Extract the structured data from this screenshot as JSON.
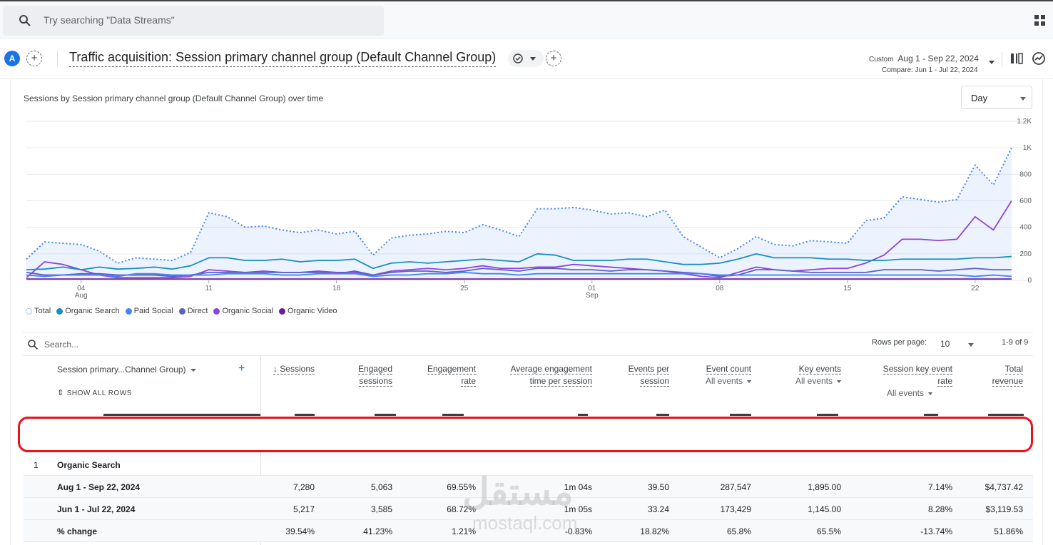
{
  "search": {
    "placeholder": "Try searching \"Data Streams\""
  },
  "header": {
    "avatar_letter": "A",
    "title": "Traffic acquisition: Session primary channel group (Default Channel Group)",
    "date_label": "Custom",
    "date_range": "Aug 1 - Sep 22, 2024",
    "compare_range": "Compare: Jun 1 - Jul 22, 2024"
  },
  "chart_card": {
    "title": "Sessions by Session primary channel group (Default Channel Group) over time",
    "granularity": "Day"
  },
  "chart_data": {
    "type": "line",
    "title": "Sessions by Session primary channel group (Default Channel Group) over time",
    "x_ticks": [
      {
        "label": "04",
        "sub": "Aug",
        "day": 3
      },
      {
        "label": "11",
        "sub": "",
        "day": 10
      },
      {
        "label": "18",
        "sub": "",
        "day": 17
      },
      {
        "label": "25",
        "sub": "",
        "day": 24
      },
      {
        "label": "01",
        "sub": "Sep",
        "day": 31
      },
      {
        "label": "08",
        "sub": "",
        "day": 38
      },
      {
        "label": "15",
        "sub": "",
        "day": 45
      },
      {
        "label": "22",
        "sub": "",
        "day": 52
      }
    ],
    "ylim": [
      0,
      1200
    ],
    "y_ticks": [
      {
        "label": "0",
        "value": 0
      },
      {
        "label": "200",
        "value": 200
      },
      {
        "label": "400",
        "value": 400
      },
      {
        "label": "600",
        "value": 600
      },
      {
        "label": "800",
        "value": 800
      },
      {
        "label": "1K",
        "value": 1000
      },
      {
        "label": "1.2K",
        "value": 1200
      }
    ],
    "series": [
      {
        "name": "Total",
        "color": "#4285f4",
        "dotted": true,
        "values": [
          160,
          290,
          280,
          270,
          220,
          130,
          170,
          160,
          150,
          210,
          510,
          480,
          400,
          410,
          380,
          360,
          380,
          350,
          370,
          190,
          320,
          340,
          350,
          370,
          360,
          420,
          380,
          330,
          540,
          540,
          550,
          530,
          500,
          510,
          480,
          530,
          330,
          250,
          170,
          240,
          330,
          270,
          260,
          300,
          290,
          280,
          450,
          470,
          630,
          610,
          590,
          610,
          870,
          720,
          1000
        ]
      },
      {
        "name": "Organic Search",
        "color": "#1a8fbe",
        "dotted": false,
        "values": [
          80,
          85,
          100,
          80,
          100,
          85,
          90,
          100,
          85,
          110,
          170,
          170,
          150,
          150,
          160,
          140,
          150,
          150,
          160,
          90,
          130,
          140,
          130,
          140,
          150,
          160,
          150,
          140,
          200,
          190,
          150,
          150,
          150,
          160,
          160,
          140,
          120,
          120,
          130,
          160,
          200,
          170,
          170,
          170,
          160,
          160,
          150,
          150,
          160,
          160,
          160,
          160,
          170,
          170,
          180
        ]
      },
      {
        "name": "Paid Social",
        "color": "#4285f4",
        "dotted": false,
        "values": [
          40,
          30,
          40,
          40,
          40,
          30,
          50,
          50,
          40,
          40,
          40,
          50,
          50,
          50,
          40,
          40,
          50,
          50,
          50,
          30,
          40,
          40,
          50,
          50,
          60,
          50,
          50,
          40,
          50,
          50,
          50,
          50,
          50,
          50,
          50,
          50,
          50,
          50,
          40,
          40,
          40,
          40,
          40,
          40,
          40,
          40,
          40,
          40,
          40,
          40,
          40,
          40,
          30,
          40,
          30
        ]
      },
      {
        "name": "Direct",
        "color": "#5b5fc7",
        "dotted": false,
        "values": [
          60,
          40,
          40,
          50,
          50,
          40,
          40,
          40,
          30,
          40,
          60,
          60,
          60,
          60,
          60,
          60,
          60,
          50,
          70,
          40,
          60,
          70,
          70,
          60,
          70,
          90,
          80,
          70,
          90,
          90,
          80,
          80,
          70,
          80,
          80,
          70,
          60,
          50,
          30,
          40,
          80,
          80,
          70,
          60,
          60,
          60,
          60,
          80,
          80,
          80,
          70,
          80,
          90,
          80,
          80
        ]
      },
      {
        "name": "Organic Social",
        "color": "#8e44d8",
        "dotted": false,
        "values": [
          20,
          140,
          120,
          80,
          40,
          20,
          20,
          20,
          20,
          30,
          80,
          70,
          60,
          70,
          60,
          60,
          70,
          60,
          60,
          40,
          70,
          80,
          90,
          80,
          90,
          110,
          90,
          90,
          100,
          100,
          120,
          110,
          100,
          90,
          80,
          70,
          50,
          30,
          20,
          60,
          100,
          80,
          70,
          80,
          90,
          90,
          130,
          190,
          310,
          310,
          300,
          310,
          480,
          380,
          600
        ]
      },
      {
        "name": "Organic Video",
        "color": "#6a1b9a",
        "dotted": false,
        "values": [
          10,
          10,
          10,
          10,
          10,
          10,
          10,
          10,
          10,
          10,
          10,
          10,
          10,
          10,
          10,
          10,
          10,
          10,
          10,
          10,
          10,
          10,
          10,
          10,
          10,
          10,
          10,
          10,
          10,
          10,
          10,
          10,
          10,
          10,
          10,
          10,
          10,
          10,
          10,
          10,
          10,
          10,
          10,
          10,
          10,
          10,
          10,
          10,
          10,
          10,
          10,
          10,
          10,
          10,
          10
        ]
      }
    ]
  },
  "legend": [
    {
      "label": "Total",
      "color": "#4285f4",
      "hollow": true
    },
    {
      "label": "Organic Search",
      "color": "#1a8fbe",
      "hollow": false
    },
    {
      "label": "Paid Social",
      "color": "#4285f4",
      "hollow": false
    },
    {
      "label": "Direct",
      "color": "#5b5fc7",
      "hollow": false
    },
    {
      "label": "Organic Social",
      "color": "#8e44d8",
      "hollow": false
    },
    {
      "label": "Organic Video",
      "color": "#6a1b9a",
      "hollow": false
    }
  ],
  "table": {
    "search_placeholder": "Search...",
    "rows_per_page_label": "Rows per page:",
    "rows_per_page": "10",
    "pager": "1-9 of 9",
    "dimension_header": "Session primary...Channel Group)",
    "show_all_rows": "SHOW ALL ROWS",
    "columns": [
      {
        "l1": "↓ Sessions",
        "l2": "",
        "sub": ""
      },
      {
        "l1": "Engaged",
        "l2": "sessions",
        "sub": ""
      },
      {
        "l1": "Engagement",
        "l2": "rate",
        "sub": ""
      },
      {
        "l1": "Average engagement",
        "l2": "time per session",
        "sub": ""
      },
      {
        "l1": "Events per",
        "l2": "session",
        "sub": ""
      },
      {
        "l1": "Event count",
        "l2": "",
        "sub": "All events"
      },
      {
        "l1": "Key events",
        "l2": "",
        "sub": "All events"
      },
      {
        "l1": "Session key event",
        "l2": "rate",
        "sub": "All events"
      },
      {
        "l1": "Total",
        "l2": "revenue",
        "sub": ""
      }
    ],
    "group": {
      "index": "1",
      "name": "Organic Search"
    },
    "rows": [
      {
        "label": "Aug 1 - Sep 22, 2024",
        "values": [
          "7,280",
          "5,063",
          "69.55%",
          "1m 04s",
          "39.50",
          "287,547",
          "1,895.00",
          "7.14%",
          "$4,737.42"
        ]
      },
      {
        "label": "Jun 1 - Jul 22, 2024",
        "values": [
          "5,217",
          "3,585",
          "68.72%",
          "1m 05s",
          "33.24",
          "173,429",
          "1,145.00",
          "8.28%",
          "$3,119.53"
        ]
      },
      {
        "label": "% change",
        "values": [
          "39.54%",
          "41.23%",
          "1.21%",
          "-0.83%",
          "18.82%",
          "65.8%",
          "65.5%",
          "-13.74%",
          "51.86%"
        ]
      }
    ]
  },
  "watermark": {
    "arabic": "مستقل",
    "latin": "mostaql.com"
  }
}
